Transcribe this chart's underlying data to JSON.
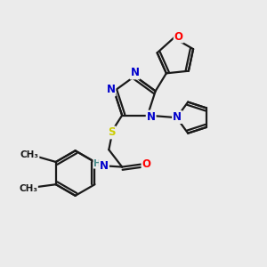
{
  "bg_color": "#ebebeb",
  "bond_color": "#1a1a1a",
  "bond_width": 1.6,
  "dbo": 0.055,
  "atom_colors": {
    "N": "#0000cc",
    "O": "#ff0000",
    "S": "#cccc00",
    "C": "#1a1a1a",
    "H": "#4a8a8a"
  },
  "fs": 8.5,
  "fss": 7.5
}
